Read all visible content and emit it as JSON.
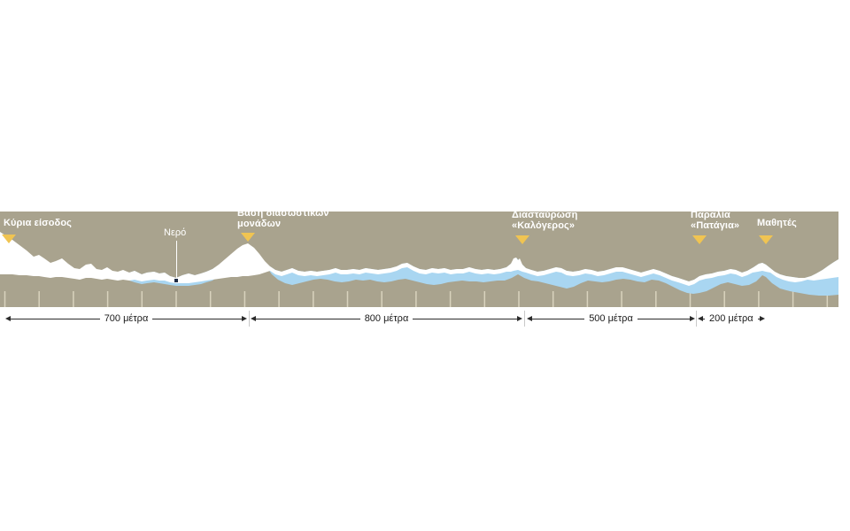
{
  "diagram": {
    "type": "elevation-profile",
    "markers": [
      {
        "id": "main-entrance",
        "label": "Κύρια είσοδος"
      },
      {
        "id": "rescue-base",
        "label": "Βάση διασωστικών\nμονάδων"
      },
      {
        "id": "kalogeros-crossing",
        "label": "Διασταύρωση\n«Καλόγερος»"
      },
      {
        "id": "patagia-beach",
        "label": "Παραλία\n«Πατάγια»"
      },
      {
        "id": "students",
        "label": "Μαθητές"
      }
    ],
    "water_callout": {
      "label": "Νερό"
    },
    "segments": [
      {
        "label": "700 μέτρα",
        "meters": 700
      },
      {
        "label": "800 μέτρα",
        "meters": 800
      },
      {
        "label": "500 μέτρα",
        "meters": 500
      },
      {
        "label": "200 μέτρα",
        "meters": 200
      }
    ],
    "colors": {
      "terrain": "#a9a38e",
      "water": "#a9d6f1",
      "trail": "#ffffff",
      "tick": "#d9d3be",
      "marker": "#f0c452",
      "label_text": "#ffffff",
      "dimension": "#2b2b2b",
      "water_dot": "#1c2b45"
    }
  }
}
